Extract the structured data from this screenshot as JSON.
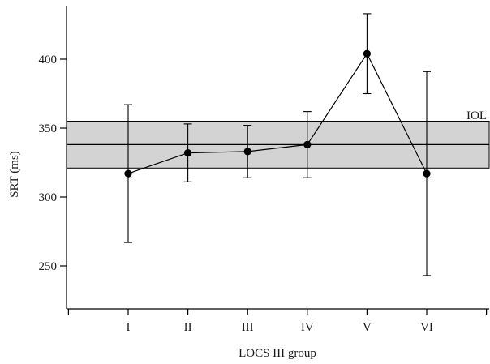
{
  "chart_data": {
    "type": "line",
    "xlabel": "LOCS III group",
    "ylabel": "SRT (ms)",
    "categories": [
      "I",
      "II",
      "III",
      "IV",
      "V",
      "VI"
    ],
    "ylim": [
      200,
      440
    ],
    "yticks": [
      250,
      300,
      350,
      400
    ],
    "series": [
      {
        "values": [
          317,
          332,
          333,
          338,
          404,
          317
        ],
        "error_upper": [
          367,
          353,
          352,
          362,
          433,
          391
        ],
        "error_lower": [
          267,
          311,
          314,
          314,
          375,
          243
        ],
        "color": "#000000",
        "marker": "circle"
      }
    ],
    "reference_band": {
      "label": "IOL",
      "mean": 338,
      "upper": 355,
      "lower": 321,
      "fill": "#d3d3d3",
      "stroke": "#000000"
    },
    "grid": false
  }
}
